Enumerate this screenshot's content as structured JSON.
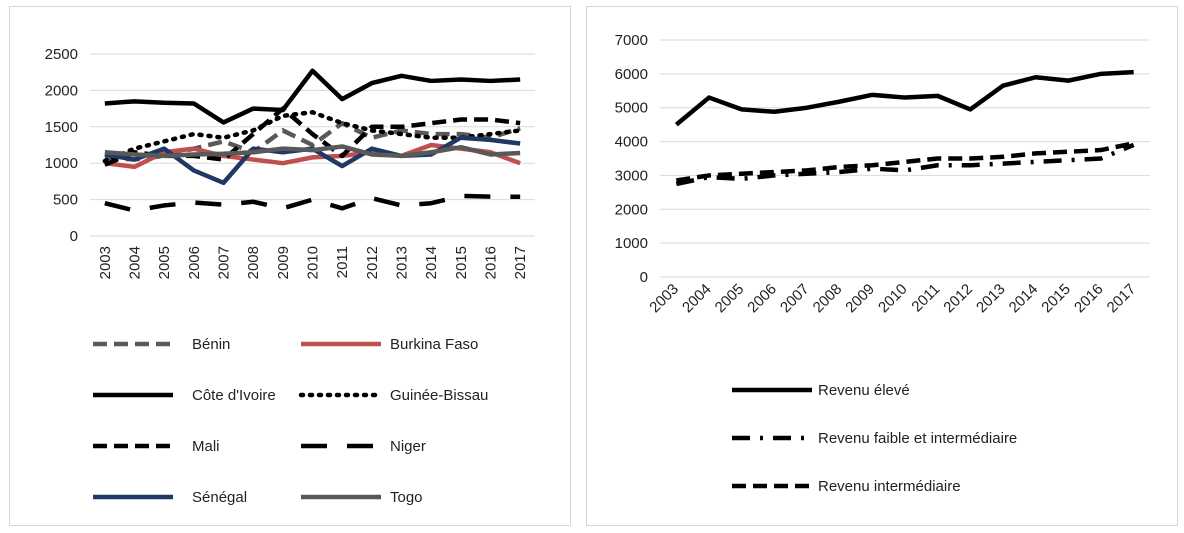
{
  "chart_data": [
    {
      "type": "line",
      "title": "",
      "xlabel": "",
      "ylabel": "",
      "x": [
        "2003",
        "2004",
        "2005",
        "2006",
        "2007",
        "2008",
        "2009",
        "2010",
        "2011",
        "2012",
        "2013",
        "2014",
        "2015",
        "2016",
        "2017"
      ],
      "ylim": [
        0,
        2500
      ],
      "yticks": [
        0,
        500,
        1000,
        1500,
        2000,
        2500
      ],
      "grid": "horizontal",
      "legend_position": "bottom",
      "series": [
        {
          "name": "Bénin",
          "color": "#595959",
          "dash": "dashed",
          "values": [
            1080,
            1050,
            1100,
            1200,
            1300,
            1150,
            1450,
            1250,
            1550,
            1350,
            1450,
            1400,
            1400,
            1350,
            1480
          ]
        },
        {
          "name": "Burkina Faso",
          "color": "#c0504d",
          "dash": "solid",
          "values": [
            1000,
            950,
            1150,
            1200,
            1100,
            1050,
            1000,
            1080,
            1100,
            1150,
            1100,
            1250,
            1200,
            1150,
            1000
          ]
        },
        {
          "name": "Côte d'Ivoire",
          "color": "#000000",
          "dash": "solid",
          "values": [
            1820,
            1850,
            1830,
            1820,
            1560,
            1750,
            1730,
            2270,
            1880,
            2100,
            2200,
            2130,
            2150,
            2130,
            2150
          ]
        },
        {
          "name": "Guinée-Bissau",
          "color": "#000000",
          "dash": "dotted",
          "values": [
            1030,
            1200,
            1300,
            1400,
            1350,
            1450,
            1650,
            1700,
            1550,
            1450,
            1400,
            1350,
            1350,
            1400,
            1450
          ]
        },
        {
          "name": "Mali",
          "color": "#000000",
          "dash": "dashed",
          "values": [
            980,
            1150,
            1100,
            1100,
            1050,
            1400,
            1750,
            1400,
            1100,
            1500,
            1500,
            1550,
            1600,
            1600,
            1550
          ]
        },
        {
          "name": "Niger",
          "color": "#000000",
          "dash": "longdash",
          "values": [
            450,
            350,
            420,
            460,
            430,
            470,
            380,
            500,
            380,
            520,
            420,
            450,
            550,
            540,
            540
          ]
        },
        {
          "name": "Sénégal",
          "color": "#1f3864",
          "dash": "solid",
          "values": [
            1120,
            1050,
            1200,
            900,
            730,
            1200,
            1150,
            1200,
            960,
            1200,
            1100,
            1120,
            1350,
            1320,
            1270
          ]
        },
        {
          "name": "Togo",
          "color": "#595959",
          "dash": "solid",
          "values": [
            1150,
            1120,
            1100,
            1120,
            1130,
            1150,
            1200,
            1180,
            1230,
            1120,
            1100,
            1150,
            1220,
            1120,
            1140
          ]
        }
      ]
    },
    {
      "type": "line",
      "title": "",
      "xlabel": "",
      "ylabel": "",
      "x": [
        "2003",
        "2004",
        "2005",
        "2006",
        "2007",
        "2008",
        "2009",
        "2010",
        "2011",
        "2012",
        "2013",
        "2014",
        "2015",
        "2016",
        "2017"
      ],
      "ylim": [
        0,
        7000
      ],
      "yticks": [
        0,
        1000,
        2000,
        3000,
        4000,
        5000,
        6000,
        7000
      ],
      "grid": "horizontal",
      "legend_position": "bottom",
      "series": [
        {
          "name": "Revenu élevé",
          "color": "#000000",
          "dash": "solid",
          "values": [
            4500,
            5300,
            4950,
            4880,
            5000,
            5180,
            5380,
            5300,
            5350,
            4950,
            5650,
            5900,
            5800,
            6000,
            6050
          ]
        },
        {
          "name": "Revenu faible et intermédiaire",
          "color": "#000000",
          "dash": "dashdot",
          "values": [
            2750,
            2950,
            2900,
            3000,
            3050,
            3100,
            3200,
            3150,
            3300,
            3300,
            3350,
            3400,
            3450,
            3500,
            3900
          ]
        },
        {
          "name": "Revenu intermédiaire",
          "color": "#000000",
          "dash": "dashed",
          "values": [
            2850,
            3000,
            3050,
            3100,
            3150,
            3250,
            3300,
            3400,
            3500,
            3500,
            3550,
            3650,
            3700,
            3750,
            3950
          ]
        }
      ]
    }
  ]
}
